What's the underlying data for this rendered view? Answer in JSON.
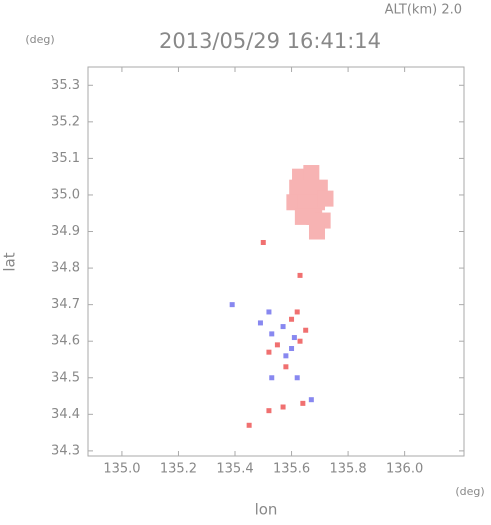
{
  "chart_data": {
    "type": "scatter",
    "title": "2013/05/29 16:41:14",
    "subtitle": "ALT(km) 2.0",
    "x_label": "lon",
    "y_label": "lat",
    "x_unit": "(deg)",
    "y_unit": "(deg)",
    "xlim": [
      134.88,
      136.21
    ],
    "ylim": [
      34.286,
      35.35
    ],
    "xticks": [
      {
        "value": 135,
        "label": "135.0"
      },
      135.2,
      135.4,
      135.6,
      135.8,
      {
        "value": 136,
        "label": "136.0"
      }
    ],
    "yticks": [
      34.3,
      34.4,
      34.5,
      34.6,
      34.7,
      34.8,
      34.9,
      {
        "value": 35,
        "label": "35.0"
      },
      35.1,
      35.2,
      35.3
    ],
    "series": [
      {
        "color": "#f7b3b3",
        "x": [
          135.63,
          135.67,
          135.62,
          135.66,
          135.7,
          135.61,
          135.65,
          135.69,
          135.72,
          135.64,
          135.68,
          135.71,
          135.69
        ],
        "y": [
          35.05,
          35.06,
          35.02,
          35.02,
          35.02,
          34.98,
          34.98,
          34.98,
          34.99,
          34.94,
          34.94,
          34.93,
          34.9
        ]
      },
      {
        "color": "#f07070",
        "x": [
          135.5,
          135.63,
          135.6,
          135.55,
          135.52,
          135.63,
          135.58,
          135.65,
          135.64,
          135.57,
          135.52,
          135.45,
          135.62
        ],
        "y": [
          34.87,
          34.78,
          34.66,
          34.59,
          34.57,
          34.6,
          34.53,
          34.63,
          34.43,
          34.42,
          34.41,
          34.37,
          34.68
        ]
      },
      {
        "color": "#8888f0",
        "x": [
          135.52,
          135.57,
          135.61,
          135.53,
          135.58,
          135.67,
          135.53,
          135.62,
          135.6,
          135.39,
          135.49
        ],
        "y": [
          34.68,
          34.64,
          34.61,
          34.62,
          34.56,
          34.44,
          34.5,
          34.5,
          34.58,
          34.7,
          34.65
        ]
      }
    ]
  }
}
